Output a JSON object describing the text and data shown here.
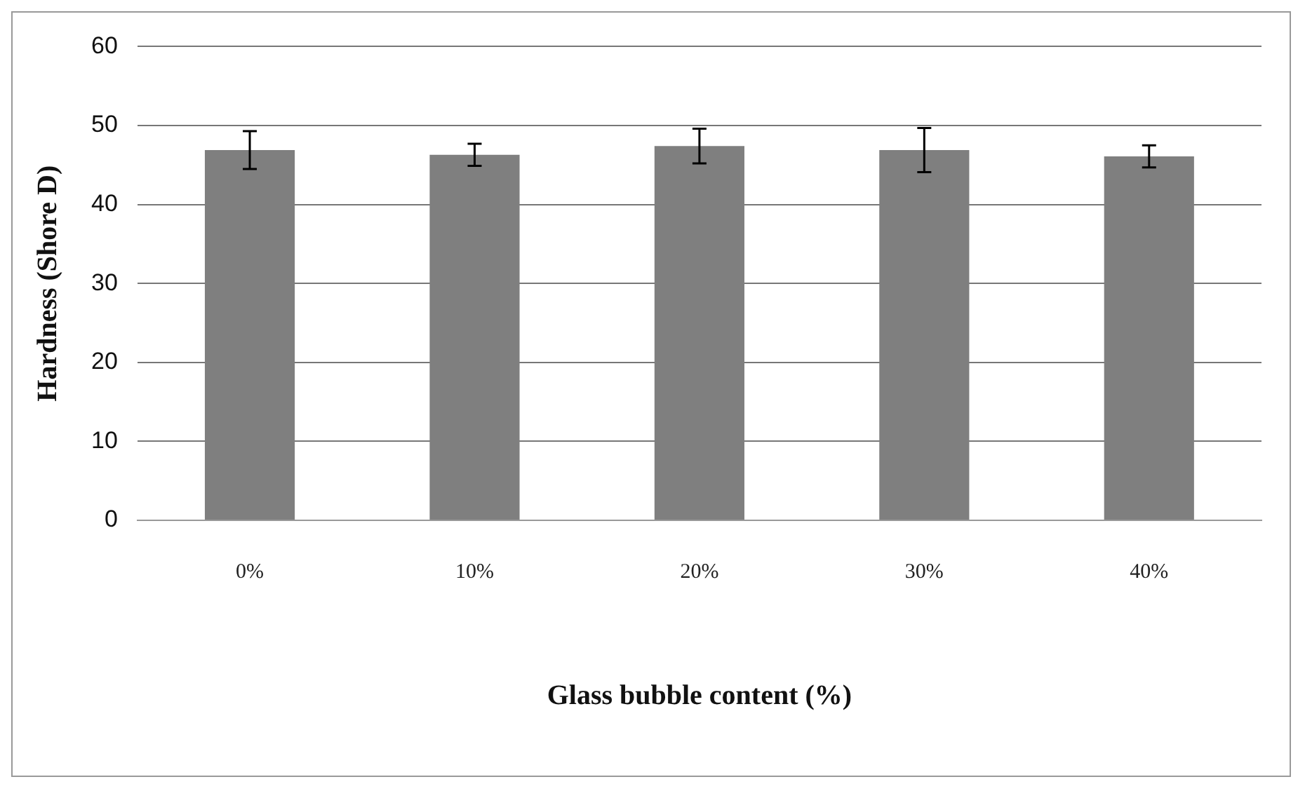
{
  "chart_data": {
    "type": "bar",
    "xlabel": "Glass bubble content (%)",
    "ylabel": "Hardness (Shore D)",
    "categories": [
      "0%",
      "10%",
      "20%",
      "30%",
      "40%"
    ],
    "values": [
      46.9,
      46.3,
      47.4,
      46.9,
      46.1
    ],
    "errors": [
      2.4,
      1.4,
      2.2,
      2.8,
      1.4
    ],
    "color": "#7f7f7f",
    "ylim": [
      0,
      60
    ],
    "yticks": [
      0,
      10,
      20,
      30,
      40,
      50,
      60
    ],
    "grid": "y",
    "legend": false
  }
}
